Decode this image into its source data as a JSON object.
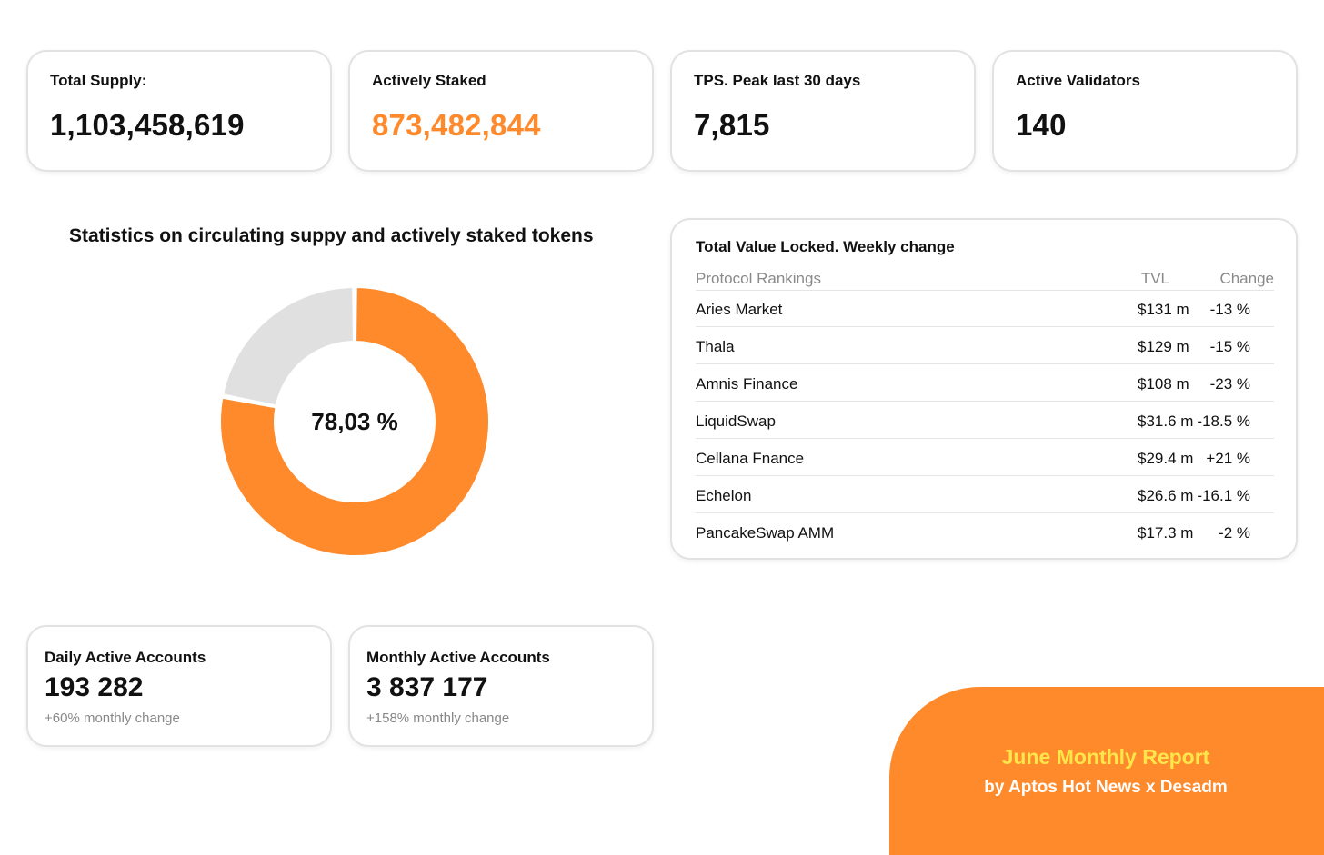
{
  "stats": [
    {
      "label": "Total Supply:",
      "value": "1,103,458,619"
    },
    {
      "label": "Actively Staked",
      "value": "873,482,844"
    },
    {
      "label": "TPS. Peak last 30 days",
      "value": "7,815"
    },
    {
      "label": "Active Validators",
      "value": "140"
    }
  ],
  "colors": {
    "accent": "#ff8a2c",
    "remainder": "#e0e0e0",
    "report_title": "#ffe64a"
  },
  "chart_data": {
    "type": "pie",
    "title": "Statistics on circulating suppy and actively staked tokens",
    "center_label": "78,03 %",
    "slices": [
      {
        "value": 78.03
      },
      {
        "value": 21.97
      }
    ]
  },
  "tvl": {
    "title": "Total Value Locked. Weekly change",
    "headers": {
      "protocol": "Protocol Rankings",
      "tvl": "TVL",
      "change": "Change"
    },
    "rows": [
      {
        "protocol": "Aries Market",
        "tvl": "$131 m",
        "change": "-13 %"
      },
      {
        "protocol": "Thala",
        "tvl": "$129 m",
        "change": "-15 %"
      },
      {
        "protocol": "Amnis Finance",
        "tvl": "$108 m",
        "change": "-23 %"
      },
      {
        "protocol": "LiquidSwap",
        "tvl": "$31.6 m",
        "change": "-18.5 %"
      },
      {
        "protocol": "Cellana Fnance",
        "tvl": "$29.4 m",
        "change": "+21 %"
      },
      {
        "protocol": "Echelon",
        "tvl": "$26.6 m",
        "change": "-16.1 %"
      },
      {
        "protocol": "PancakeSwap AMM",
        "tvl": "$17.3 m",
        "change": "-2 %"
      }
    ]
  },
  "accounts": [
    {
      "label": "Daily Active Accounts",
      "value": "193 282",
      "change": "+60% monthly change"
    },
    {
      "label": "Monthly Active Accounts",
      "value": "3 837 177",
      "change": "+158% monthly change"
    }
  ],
  "report": {
    "title": "June Monthly Report",
    "subtitle": "by Aptos Hot News x Desadm"
  }
}
